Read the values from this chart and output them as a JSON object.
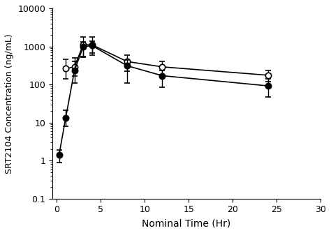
{
  "title": "",
  "xlabel": "Nominal Time (Hr)",
  "ylabel": "SRT2104 Concentration (ng/mL)",
  "xlim": [
    -0.5,
    30
  ],
  "ylim": [
    0.1,
    10000
  ],
  "xticks": [
    0,
    5,
    10,
    15,
    20,
    25,
    30
  ],
  "background_color": "#ffffff",
  "series_filled": {
    "x": [
      0.25,
      1,
      2,
      3,
      4,
      8,
      12,
      24
    ],
    "y": [
      1.4,
      13,
      230,
      980,
      1050,
      310,
      170,
      92
    ],
    "yerr_lo": [
      0.5,
      5,
      120,
      450,
      380,
      200,
      85,
      45
    ],
    "yerr_hi": [
      0.5,
      8,
      180,
      350,
      320,
      130,
      60,
      48
    ],
    "color": "#000000",
    "marker": "o",
    "fillstyle": "full"
  },
  "series_open": {
    "x": [
      1,
      2,
      3,
      4,
      8,
      12,
      24
    ],
    "y": [
      260,
      290,
      1100,
      1100,
      400,
      290,
      175
    ],
    "yerr_lo": [
      120,
      120,
      550,
      520,
      180,
      110,
      55
    ],
    "yerr_hi": [
      200,
      200,
      700,
      650,
      180,
      110,
      55
    ],
    "color": "#000000",
    "marker": "o",
    "fillstyle": "none"
  }
}
